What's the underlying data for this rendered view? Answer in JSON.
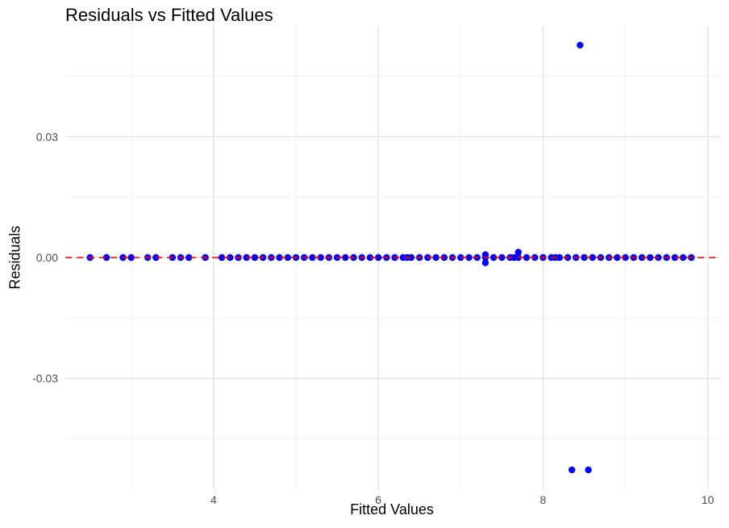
{
  "chart_data": {
    "type": "scatter",
    "title": "Residuals vs Fitted Values",
    "xlabel": "Fitted Values",
    "ylabel": "Residuals",
    "xlim": [
      2.2,
      10.15
    ],
    "ylim": [
      -0.0575,
      0.0575
    ],
    "x_ticks": [
      4,
      6,
      8,
      10
    ],
    "x_tick_labels": [
      "4",
      "6",
      "8",
      "10"
    ],
    "y_ticks": [
      -0.03,
      0.0,
      0.03
    ],
    "y_tick_labels": [
      "-0.03",
      "0.00",
      "0.03"
    ],
    "grid": true,
    "reference_line": {
      "y": 0,
      "style": "dashed",
      "color": "#ff0000"
    },
    "point_color": "#0000ff",
    "points": [
      {
        "x": 2.5,
        "y": 0
      },
      {
        "x": 2.7,
        "y": 0
      },
      {
        "x": 2.9,
        "y": 0
      },
      {
        "x": 3.0,
        "y": 0
      },
      {
        "x": 3.2,
        "y": 0
      },
      {
        "x": 3.3,
        "y": 0
      },
      {
        "x": 3.5,
        "y": 0
      },
      {
        "x": 3.6,
        "y": 0
      },
      {
        "x": 3.7,
        "y": 0
      },
      {
        "x": 3.9,
        "y": 0
      },
      {
        "x": 4.1,
        "y": 0
      },
      {
        "x": 4.2,
        "y": 0
      },
      {
        "x": 4.3,
        "y": 0
      },
      {
        "x": 4.4,
        "y": 0
      },
      {
        "x": 4.5,
        "y": 0
      },
      {
        "x": 4.6,
        "y": 0
      },
      {
        "x": 4.7,
        "y": 0
      },
      {
        "x": 4.8,
        "y": 0
      },
      {
        "x": 4.9,
        "y": 0
      },
      {
        "x": 5.0,
        "y": 0
      },
      {
        "x": 5.1,
        "y": 0
      },
      {
        "x": 5.2,
        "y": 0
      },
      {
        "x": 5.3,
        "y": 0
      },
      {
        "x": 5.4,
        "y": 0
      },
      {
        "x": 5.5,
        "y": 0
      },
      {
        "x": 5.6,
        "y": 0
      },
      {
        "x": 5.7,
        "y": 0
      },
      {
        "x": 5.8,
        "y": 0
      },
      {
        "x": 5.9,
        "y": 0
      },
      {
        "x": 6.0,
        "y": 0
      },
      {
        "x": 6.1,
        "y": 0
      },
      {
        "x": 6.2,
        "y": 0
      },
      {
        "x": 6.3,
        "y": 0
      },
      {
        "x": 6.35,
        "y": 0
      },
      {
        "x": 6.4,
        "y": 0
      },
      {
        "x": 6.5,
        "y": 0
      },
      {
        "x": 6.6,
        "y": 0
      },
      {
        "x": 6.7,
        "y": 0
      },
      {
        "x": 6.8,
        "y": 0
      },
      {
        "x": 6.9,
        "y": 0
      },
      {
        "x": 7.0,
        "y": 0
      },
      {
        "x": 7.1,
        "y": 0
      },
      {
        "x": 7.2,
        "y": 0
      },
      {
        "x": 7.3,
        "y": 0.0007
      },
      {
        "x": 7.3,
        "y": -0.0013
      },
      {
        "x": 7.3,
        "y": 0
      },
      {
        "x": 7.4,
        "y": 0
      },
      {
        "x": 7.5,
        "y": 0
      },
      {
        "x": 7.6,
        "y": 0
      },
      {
        "x": 7.65,
        "y": 0
      },
      {
        "x": 7.7,
        "y": 0.0013
      },
      {
        "x": 7.7,
        "y": 0
      },
      {
        "x": 7.8,
        "y": 0
      },
      {
        "x": 7.9,
        "y": 0
      },
      {
        "x": 8.0,
        "y": 0
      },
      {
        "x": 8.1,
        "y": 0
      },
      {
        "x": 8.15,
        "y": 0
      },
      {
        "x": 8.2,
        "y": 0
      },
      {
        "x": 8.3,
        "y": 0
      },
      {
        "x": 8.35,
        "y": -0.0527
      },
      {
        "x": 8.4,
        "y": 0
      },
      {
        "x": 8.45,
        "y": 0.0527
      },
      {
        "x": 8.5,
        "y": 0
      },
      {
        "x": 8.55,
        "y": -0.0527
      },
      {
        "x": 8.6,
        "y": 0
      },
      {
        "x": 8.7,
        "y": 0
      },
      {
        "x": 8.8,
        "y": 0
      },
      {
        "x": 8.9,
        "y": 0
      },
      {
        "x": 9.0,
        "y": 0
      },
      {
        "x": 9.1,
        "y": 0
      },
      {
        "x": 9.2,
        "y": 0
      },
      {
        "x": 9.3,
        "y": 0
      },
      {
        "x": 9.4,
        "y": 0
      },
      {
        "x": 9.5,
        "y": 0
      },
      {
        "x": 9.6,
        "y": 0
      },
      {
        "x": 9.7,
        "y": 0
      },
      {
        "x": 9.8,
        "y": 0
      }
    ]
  }
}
